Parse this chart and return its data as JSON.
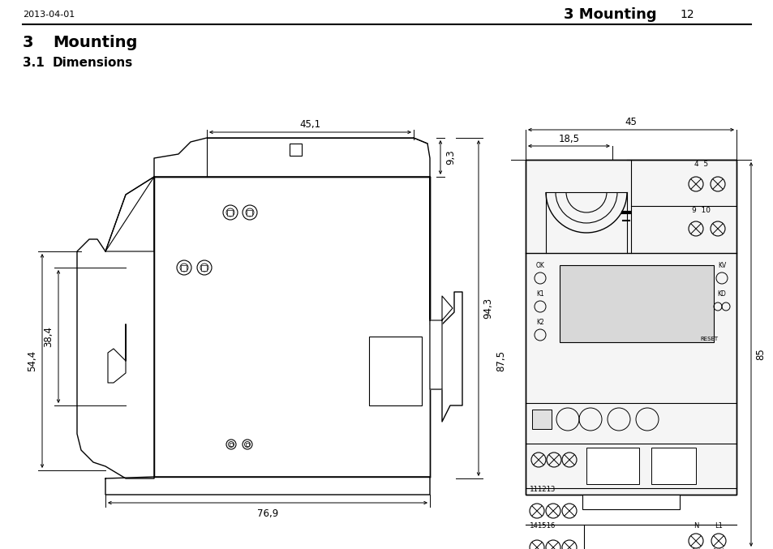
{
  "bg_color": "#ffffff",
  "header_date": "2013-04-01",
  "header_title": "3 Mounting",
  "header_page": "12",
  "section_num": "3",
  "section_title": "Mounting",
  "subsection_num": "3.1",
  "subsection_title": "Dimensions",
  "dim_451": "45,1",
  "dim_93": "9,3",
  "dim_769": "76,9",
  "dim_544": "54,4",
  "dim_384": "38,4",
  "dim_943": "94,3",
  "dim_45": "45",
  "dim_185": "18,5",
  "dim_875": "87,5",
  "dim_85": "85"
}
